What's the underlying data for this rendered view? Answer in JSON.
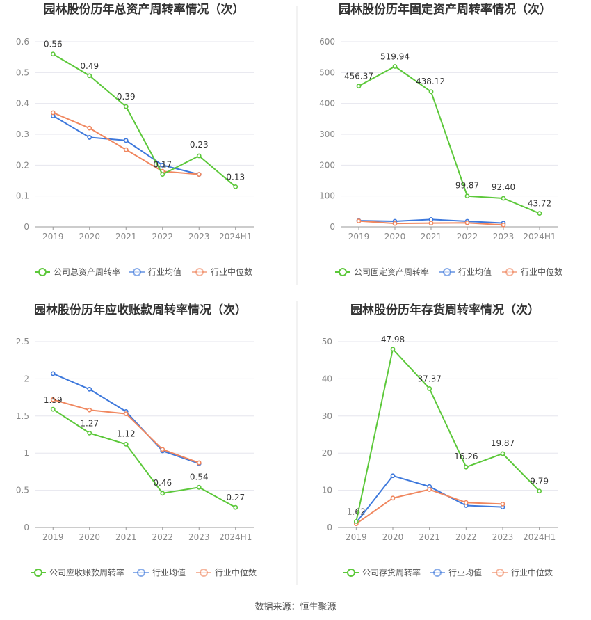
{
  "colors": {
    "company": "#5cc83a",
    "avg": "#3d78dc",
    "median": "#f0875f",
    "grid": "#e6e6ee",
    "axis": "#999999",
    "divider": "#e4e4e4"
  },
  "source": "数据来源：恒生聚源",
  "chart_data": [
    {
      "type": "line",
      "title": "园林股份历年总资产周转率情况（次）",
      "categories": [
        "2019",
        "2020",
        "2021",
        "2022",
        "2023",
        "2024H1"
      ],
      "yticks": [
        "0",
        "0.1",
        "0.2",
        "0.3",
        "0.4",
        "0.5",
        "0.6"
      ],
      "ylim": [
        0,
        0.6
      ],
      "grid": true,
      "legend_position": "bottom",
      "series": [
        {
          "name": "公司总资产周转率",
          "role": "company",
          "values": [
            0.56,
            0.49,
            0.39,
            0.17,
            0.23,
            0.13
          ],
          "labels": [
            "0.56",
            "0.49",
            "0.39",
            "0.17",
            "0.23",
            "0.13"
          ]
        },
        {
          "name": "行业均值",
          "role": "avg",
          "values": [
            0.36,
            0.29,
            0.28,
            0.2,
            0.17,
            null
          ]
        },
        {
          "name": "行业中位数",
          "role": "median",
          "values": [
            0.37,
            0.32,
            0.25,
            0.18,
            0.17,
            null
          ]
        }
      ]
    },
    {
      "type": "line",
      "title": "园林股份历年固定资产周转率情况（次）",
      "categories": [
        "2019",
        "2020",
        "2021",
        "2022",
        "2023",
        "2024H1"
      ],
      "yticks": [
        "0",
        "100",
        "200",
        "300",
        "400",
        "500",
        "600"
      ],
      "ylim": [
        0,
        600
      ],
      "grid": true,
      "legend_position": "bottom",
      "series": [
        {
          "name": "公司固定资产周转率",
          "role": "company",
          "values": [
            456.37,
            519.94,
            438.12,
            99.87,
            92.4,
            43.72
          ],
          "labels": [
            "456.37",
            "519.94",
            "438.12",
            "99.87",
            "92.40",
            "43.72"
          ]
        },
        {
          "name": "行业均值",
          "role": "avg",
          "values": [
            20,
            18,
            24,
            18,
            12,
            null
          ]
        },
        {
          "name": "行业中位数",
          "role": "median",
          "values": [
            19,
            11,
            12,
            13,
            6,
            null
          ]
        }
      ]
    },
    {
      "type": "line",
      "title": "园林股份历年应收账款周转率情况（次）",
      "categories": [
        "2019",
        "2020",
        "2021",
        "2022",
        "2023",
        "2024H1"
      ],
      "yticks": [
        "0",
        "0.5",
        "1",
        "1.5",
        "2",
        "2.5"
      ],
      "ylim": [
        0,
        2.5
      ],
      "grid": true,
      "legend_position": "bottom",
      "series": [
        {
          "name": "公司应收账款周转率",
          "role": "company",
          "values": [
            1.59,
            1.27,
            1.12,
            0.46,
            0.54,
            0.27
          ],
          "labels": [
            "1.59",
            "1.27",
            "1.12",
            "0.46",
            "0.54",
            "0.27"
          ]
        },
        {
          "name": "行业均值",
          "role": "avg",
          "values": [
            2.07,
            1.86,
            1.56,
            1.03,
            0.86,
            null
          ]
        },
        {
          "name": "行业中位数",
          "role": "median",
          "values": [
            1.72,
            1.58,
            1.53,
            1.05,
            0.87,
            null
          ]
        }
      ]
    },
    {
      "type": "line",
      "title": "园林股份历年存货周转率情况（次）",
      "categories": [
        "2019",
        "2020",
        "2021",
        "2022",
        "2023",
        "2024H1"
      ],
      "yticks": [
        "0",
        "10",
        "20",
        "30",
        "40",
        "50"
      ],
      "ylim": [
        0,
        50
      ],
      "grid": true,
      "legend_position": "bottom",
      "series": [
        {
          "name": "公司存货周转率",
          "role": "company",
          "values": [
            1.62,
            47.98,
            37.37,
            16.26,
            19.87,
            9.79
          ],
          "labels": [
            "1.62",
            "47.98",
            "37.37",
            "16.26",
            "19.87",
            "9.79"
          ]
        },
        {
          "name": "行业均值",
          "role": "avg",
          "values": [
            1.3,
            13.9,
            11.0,
            5.9,
            5.5,
            null
          ]
        },
        {
          "name": "行业中位数",
          "role": "median",
          "values": [
            1.0,
            7.9,
            10.2,
            6.7,
            6.3,
            null
          ]
        }
      ]
    }
  ]
}
